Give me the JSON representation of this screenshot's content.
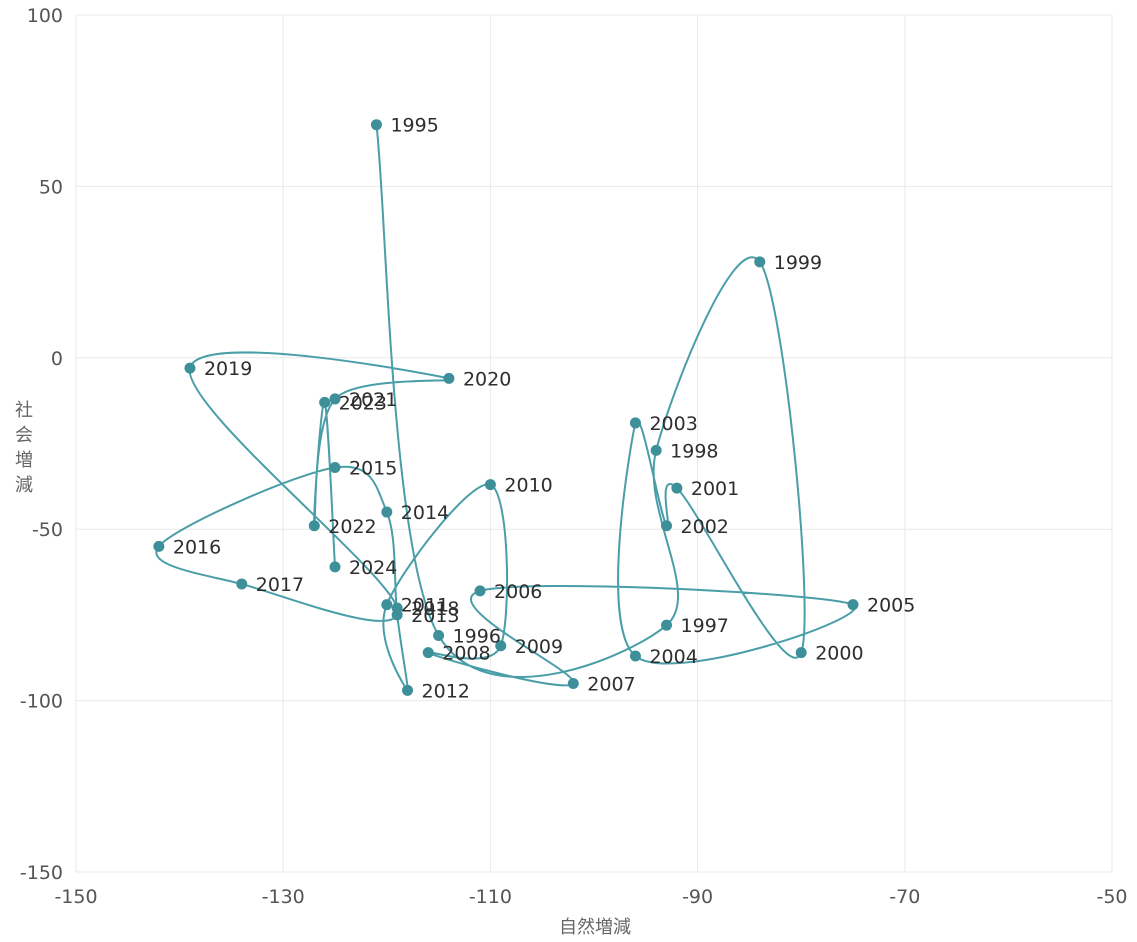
{
  "chart_data": {
    "type": "scatter",
    "connected": true,
    "xlabel": "自然増減",
    "ylabel": "社会増減",
    "xlim": [
      -150,
      -50
    ],
    "ylim": [
      -150,
      100
    ],
    "grid": true,
    "x_ticks": [
      "-150",
      "-130",
      "-110",
      "-90",
      "-70",
      "-50"
    ],
    "y_ticks": [
      "100",
      "50",
      "0",
      "-50",
      "-100",
      "-150"
    ],
    "line_color": "#4a9ea8",
    "point_color": "#3d8f99",
    "series": [
      {
        "points": [
          {
            "label": "1995",
            "x": -121,
            "y": 68
          },
          {
            "label": "1996",
            "x": -115,
            "y": -81
          },
          {
            "label": "1997",
            "x": -93,
            "y": -78
          },
          {
            "label": "1998",
            "x": -94,
            "y": -27
          },
          {
            "label": "1999",
            "x": -84,
            "y": 28
          },
          {
            "label": "2000",
            "x": -80,
            "y": -86
          },
          {
            "label": "2001",
            "x": -92,
            "y": -38
          },
          {
            "label": "2002",
            "x": -93,
            "y": -49
          },
          {
            "label": "2003",
            "x": -96,
            "y": -19
          },
          {
            "label": "2004",
            "x": -96,
            "y": -87
          },
          {
            "label": "2005",
            "x": -75,
            "y": -72
          },
          {
            "label": "2006",
            "x": -111,
            "y": -68
          },
          {
            "label": "2007",
            "x": -102,
            "y": -95
          },
          {
            "label": "2008",
            "x": -116,
            "y": -86
          },
          {
            "label": "2009",
            "x": -109,
            "y": -84
          },
          {
            "label": "2010",
            "x": -110,
            "y": -37
          },
          {
            "label": "2011",
            "x": -120,
            "y": -72
          },
          {
            "label": "2012",
            "x": -118,
            "y": -97
          },
          {
            "label": "2013",
            "x": -119,
            "y": -75
          },
          {
            "label": "2014",
            "x": -120,
            "y": -45
          },
          {
            "label": "2015",
            "x": -125,
            "y": -32
          },
          {
            "label": "2016",
            "x": -142,
            "y": -55
          },
          {
            "label": "2017",
            "x": -134,
            "y": -66
          },
          {
            "label": "2018",
            "x": -119,
            "y": -73
          },
          {
            "label": "2019",
            "x": -139,
            "y": -3
          },
          {
            "label": "2020",
            "x": -114,
            "y": -6
          },
          {
            "label": "2021",
            "x": -125,
            "y": -12
          },
          {
            "label": "2022",
            "x": -127,
            "y": -49
          },
          {
            "label": "2023",
            "x": -126,
            "y": -13
          },
          {
            "label": "2024",
            "x": -125,
            "y": -61
          }
        ]
      }
    ]
  }
}
